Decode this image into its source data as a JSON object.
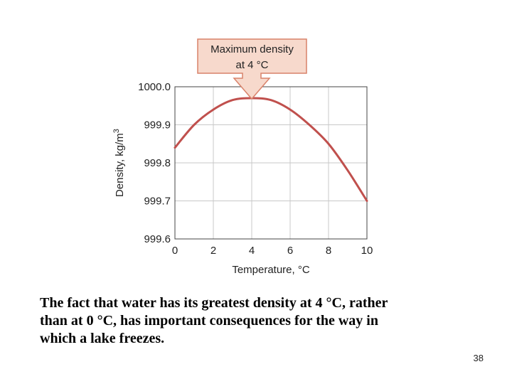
{
  "chart_data": {
    "type": "line",
    "xlabel": "Temperature, °C",
    "ylabel": "Density, kg/m",
    "ylabel_superscript": "3",
    "xlim": [
      0,
      10
    ],
    "ylim": [
      999.6,
      1000.0
    ],
    "x_ticks": [
      "0",
      "2",
      "4",
      "6",
      "8",
      "10"
    ],
    "y_ticks": [
      "1000.0",
      "999.9",
      "999.8",
      "999.7",
      "999.6"
    ],
    "grid": true,
    "series": [
      {
        "color": "#c0504d",
        "x": [
          0,
          1,
          2,
          3,
          4,
          5,
          6,
          7,
          8,
          9,
          10
        ],
        "y": [
          999.84,
          999.9,
          999.94,
          999.965,
          999.97,
          999.965,
          999.94,
          999.9,
          999.85,
          999.78,
          999.7
        ]
      }
    ],
    "annotation": {
      "line1": "Maximum density",
      "line2": "at 4 °C",
      "x": 4,
      "fill": "#f7d9cc",
      "stroke": "#d9826a"
    }
  },
  "caption": {
    "line1": "The fact that water has its greatest density at 4 °C, rather",
    "line2": "than at 0 °C, has important consequences for the way in",
    "line3": "which a lake freezes."
  },
  "page_number": "38"
}
